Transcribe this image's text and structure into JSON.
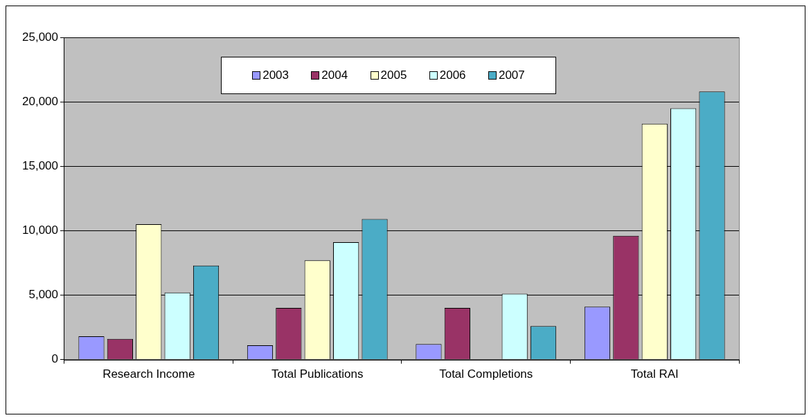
{
  "chart_data": {
    "type": "bar",
    "categories": [
      "Research Income",
      "Total Publications",
      "Total Completions",
      "Total RAI"
    ],
    "series": [
      {
        "name": "2003",
        "color": "#9999ff",
        "values": [
          1800,
          1100,
          1200,
          4100
        ]
      },
      {
        "name": "2004",
        "color": "#993366",
        "values": [
          1600,
          4000,
          4000,
          9600
        ]
      },
      {
        "name": "2005",
        "color": "#ffffcc",
        "values": [
          10500,
          7700,
          null,
          18300
        ]
      },
      {
        "name": "2006",
        "color": "#ccffff",
        "values": [
          5200,
          9100,
          5100,
          19500
        ]
      },
      {
        "name": "2007",
        "color": "#4bacc6",
        "values": [
          7300,
          10900,
          2600,
          20800
        ]
      }
    ],
    "ylim": [
      0,
      25000
    ],
    "yticks": [
      {
        "value": 0,
        "label": "0"
      },
      {
        "value": 5000,
        "label": "5,000"
      },
      {
        "value": 10000,
        "label": "10,000"
      },
      {
        "value": 15000,
        "label": "15,000"
      },
      {
        "value": 20000,
        "label": "20,000"
      },
      {
        "value": 25000,
        "label": "25,000"
      }
    ],
    "grid": "y",
    "legend": "top"
  }
}
